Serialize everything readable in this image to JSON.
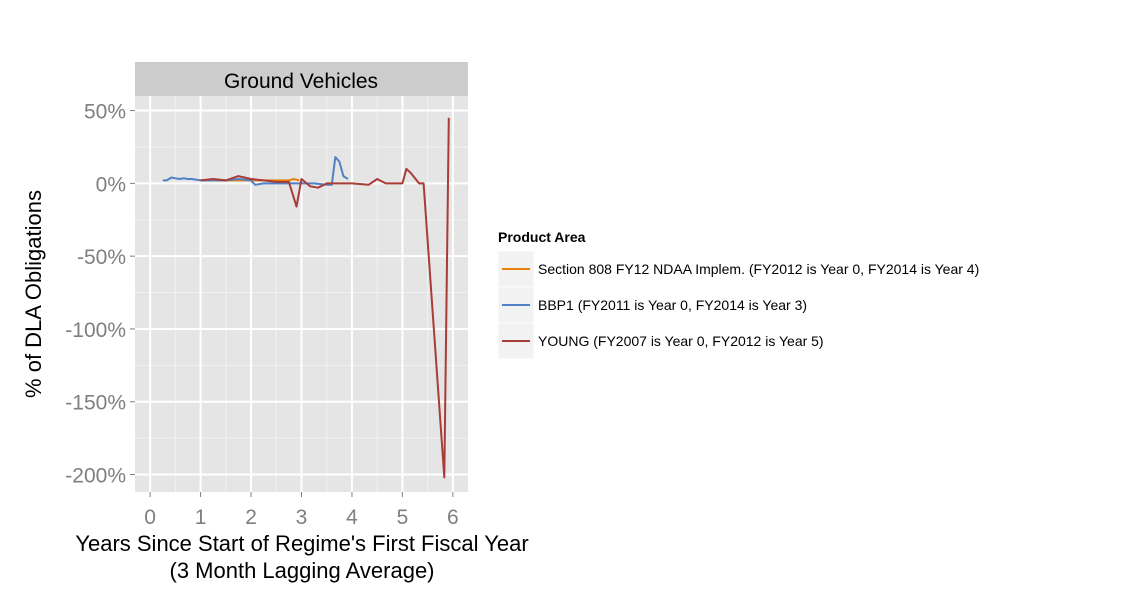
{
  "chart_data": {
    "type": "line",
    "facet_title": "Ground Vehicles",
    "xlabel_line1": "Years Since Start of Regime's First Fiscal Year",
    "xlabel_line2": "(3 Month Lagging Average)",
    "ylabel": "% of DLA Obligations",
    "xlim": [
      -0.3,
      6.3
    ],
    "ylim": [
      -212,
      60
    ],
    "x_ticks": [
      0,
      1,
      2,
      3,
      4,
      5,
      6
    ],
    "y_ticks": [
      50,
      0,
      -50,
      -100,
      -150,
      -200
    ],
    "y_tick_labels": [
      "50%",
      "0%",
      "-50%",
      "-100%",
      "-150%",
      "-200%"
    ],
    "grid": true,
    "legend": {
      "title": "Product Area",
      "position": "right"
    },
    "series": [
      {
        "name": "Section 808 FY12 NDAA Implem. (FY2012 is Year 0, FY2014 is Year 4)",
        "color": "#E8820C",
        "x": [
          1.0,
          1.25,
          1.5,
          1.75,
          2.0,
          2.25,
          2.5,
          2.75,
          2.85,
          2.95
        ],
        "y": [
          2,
          2,
          2,
          2,
          2,
          2,
          2,
          2,
          3,
          2
        ]
      },
      {
        "name": "BBP1 (FY2011 is Year 0, FY2014 is Year 3)",
        "color": "#4F81C4",
        "x": [
          0.25,
          0.33,
          0.42,
          0.5,
          0.58,
          0.67,
          0.75,
          0.83,
          0.92,
          1.0,
          1.25,
          1.5,
          1.75,
          2.0,
          2.08,
          2.25,
          2.5,
          2.75,
          3.0,
          3.25,
          3.5,
          3.6,
          3.67,
          3.75,
          3.83,
          3.92
        ],
        "y": [
          2,
          2,
          4,
          3.5,
          3,
          3.5,
          3,
          3,
          2.5,
          2,
          2,
          2,
          3,
          2,
          -1,
          0,
          0,
          0,
          0,
          0,
          -1,
          -1,
          18,
          15,
          5,
          3
        ]
      },
      {
        "name": "YOUNG (FY2007 is Year 0, FY2012 is Year 5)",
        "color": "#A93C36",
        "x": [
          1.0,
          1.25,
          1.5,
          1.75,
          2.0,
          2.25,
          2.5,
          2.75,
          2.9,
          3.0,
          3.17,
          3.33,
          3.5,
          4.0,
          4.33,
          4.5,
          4.67,
          5.0,
          5.08,
          5.17,
          5.33,
          5.42,
          5.83,
          5.92
        ],
        "y": [
          2,
          3,
          2,
          5,
          3,
          2,
          1,
          1,
          -16,
          3,
          -2,
          -3,
          0,
          0,
          -1,
          3,
          0,
          0,
          10,
          7,
          0,
          0,
          -202,
          45
        ]
      }
    ]
  }
}
